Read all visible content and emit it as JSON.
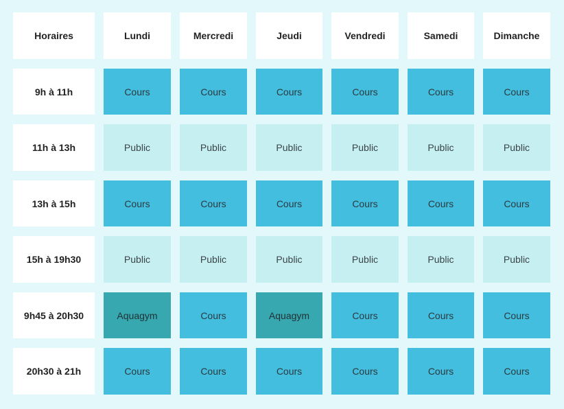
{
  "header": {
    "time_col": "Horaires",
    "days": [
      "Lundi",
      "Mercredi",
      "Jeudi",
      "Vendredi",
      "Samedi",
      "Dimanche"
    ]
  },
  "rows": [
    {
      "time": "9h à 11h",
      "cells": [
        "Cours",
        "Cours",
        "Cours",
        "Cours",
        "Cours",
        "Cours"
      ]
    },
    {
      "time": "11h à 13h",
      "cells": [
        "Public",
        "Public",
        "Public",
        "Public",
        "Public",
        "Public"
      ]
    },
    {
      "time": "13h à 15h",
      "cells": [
        "Cours",
        "Cours",
        "Cours",
        "Cours",
        "Cours",
        "Cours"
      ]
    },
    {
      "time": "15h à 19h30",
      "cells": [
        "Public",
        "Public",
        "Public",
        "Public",
        "Public",
        "Public"
      ]
    },
    {
      "time": "9h45 à 20h30",
      "cells": [
        "Aquagym",
        "Cours",
        "Aquagym",
        "Cours",
        "Cours",
        "Cours"
      ]
    },
    {
      "time": "20h30 à 21h",
      "cells": [
        "Cours",
        "Cours",
        "Cours",
        "Cours",
        "Cours",
        "Cours"
      ]
    }
  ],
  "colors": {
    "page_bg": "#e3f8fb",
    "Cours": "#43bede",
    "Public": "#c6eff2",
    "Aquagym": "#37a7b0",
    "header_bg": "#ffffff"
  }
}
